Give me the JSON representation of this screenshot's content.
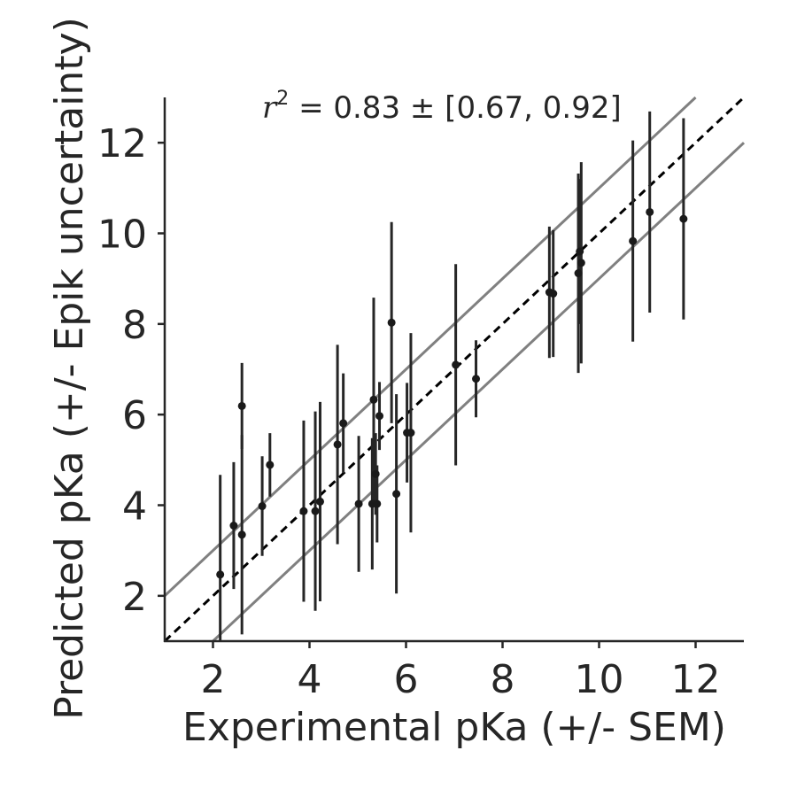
{
  "chart_data": {
    "type": "scatter",
    "title": "",
    "xlabel": "Experimental pKa (+/- SEM)",
    "ylabel": "Predicted pKa (+/- Epik uncertainty)",
    "xlim": [
      1,
      13
    ],
    "ylim": [
      1,
      13
    ],
    "xticks": [
      2,
      4,
      6,
      8,
      10,
      12
    ],
    "yticks": [
      2,
      4,
      6,
      8,
      10,
      12
    ],
    "grid": false,
    "annotation": {
      "r_symbol": "r",
      "r_exponent": "2",
      "text": " = 0.83 ± [0.67, 0.92]"
    },
    "reference_lines": [
      {
        "name": "identity",
        "offset": 0,
        "style": "dashed",
        "color": "#000000"
      },
      {
        "name": "upper bound",
        "offset": 1,
        "style": "solid",
        "color": "#808080"
      },
      {
        "name": "lower bound",
        "offset": -1,
        "style": "solid",
        "color": "#808080"
      }
    ],
    "marker_color": "#1a1a1a",
    "errorbar_color": "#262626",
    "points": [
      {
        "x": 2.15,
        "y": 2.47,
        "yerr": 2.2
      },
      {
        "x": 2.43,
        "y": 3.55,
        "yerr": 1.4
      },
      {
        "x": 2.6,
        "y": 6.19,
        "yerr": 0.95
      },
      {
        "x": 2.6,
        "y": 3.35,
        "yerr": 2.2
      },
      {
        "x": 3.02,
        "y": 3.98,
        "yerr": 1.1
      },
      {
        "x": 3.18,
        "y": 4.89,
        "yerr": 0.7
      },
      {
        "x": 3.88,
        "y": 3.87,
        "yerr": 2.0
      },
      {
        "x": 4.12,
        "y": 3.87,
        "yerr": 2.2
      },
      {
        "x": 4.22,
        "y": 4.08,
        "yerr": 2.2
      },
      {
        "x": 4.58,
        "y": 5.34,
        "yerr": 2.2
      },
      {
        "x": 4.7,
        "y": 5.81,
        "yerr": 1.1
      },
      {
        "x": 5.02,
        "y": 4.03,
        "yerr": 1.5
      },
      {
        "x": 5.3,
        "y": 4.03,
        "yerr": 1.45
      },
      {
        "x": 5.33,
        "y": 6.33,
        "yerr": 2.25
      },
      {
        "x": 5.37,
        "y": 4.69,
        "yerr": 0.9
      },
      {
        "x": 5.4,
        "y": 4.03,
        "yerr": 0.85
      },
      {
        "x": 5.45,
        "y": 5.97,
        "yerr": 0.75
      },
      {
        "x": 5.7,
        "y": 8.03,
        "yerr": 2.22
      },
      {
        "x": 5.8,
        "y": 4.25,
        "yerr": 2.2
      },
      {
        "x": 6.02,
        "y": 5.6,
        "yerr": 1.1
      },
      {
        "x": 6.1,
        "y": 5.6,
        "yerr": 2.2
      },
      {
        "x": 7.03,
        "y": 7.1,
        "yerr": 2.22
      },
      {
        "x": 7.45,
        "y": 6.79,
        "yerr": 0.85
      },
      {
        "x": 8.97,
        "y": 8.7,
        "yerr": 1.45
      },
      {
        "x": 9.05,
        "y": 8.67,
        "yerr": 1.4
      },
      {
        "x": 9.57,
        "y": 9.12,
        "yerr": 2.2
      },
      {
        "x": 9.6,
        "y": 9.6,
        "yerr": 1.6
      },
      {
        "x": 9.63,
        "y": 9.35,
        "yerr": 2.22
      },
      {
        "x": 10.7,
        "y": 9.83,
        "yerr": 2.22
      },
      {
        "x": 11.05,
        "y": 10.47,
        "yerr": 2.22
      },
      {
        "x": 11.75,
        "y": 10.32,
        "yerr": 2.22
      }
    ]
  }
}
